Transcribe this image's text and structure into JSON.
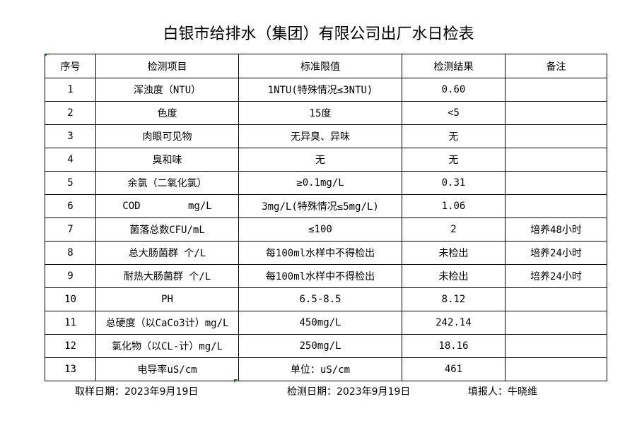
{
  "title": "白银市给排水（集团）有限公司出厂水日检表",
  "table": {
    "headers": [
      "序号",
      "检测项目",
      "标准限值",
      "检测结果",
      "备注"
    ],
    "rows": [
      [
        "1",
        "浑浊度（NTU）",
        "1NTU(特殊情况≤3NTU)",
        "0.60",
        ""
      ],
      [
        "2",
        "色度",
        "15度",
        "<5",
        ""
      ],
      [
        "3",
        "肉眼可见物",
        "无异臭、异味",
        "无",
        ""
      ],
      [
        "4",
        "臭和味",
        "无",
        "无",
        ""
      ],
      [
        "5",
        "余氯（二氧化氯）",
        "≥0.1mg/L",
        "0.31",
        ""
      ],
      [
        "6",
        "COD        mg/L",
        "3mg/L(特殊情况≤5mg/L)",
        "1.06",
        ""
      ],
      [
        "7",
        "菌落总数CFU/mL",
        "≤100",
        "2",
        "培养48小时"
      ],
      [
        "8",
        "总大肠菌群 个/L",
        "每100ml水样中不得检出",
        "未检出",
        "培养24小时"
      ],
      [
        "9",
        "耐热大肠菌群 个/L",
        "每100ml水样中不得检出",
        "未检出",
        "培养24小时"
      ],
      [
        "10",
        "PH",
        "6.5-8.5",
        "8.12",
        ""
      ],
      [
        "11",
        "总硬度（以CaCo3计）mg/L",
        "450mg/L",
        "242.14",
        ""
      ],
      [
        "12",
        "氯化物（以CL-计）mg/L",
        "250mg/L",
        "18.16",
        ""
      ],
      [
        "13",
        "电导率uS/cm",
        "单位：uS/cm",
        "461",
        ""
      ]
    ]
  },
  "footer": {
    "sampling_date": "取样日期：2023年9月19日",
    "test_date": "检测日期：2023年9月19日",
    "reporter": "填报人：牛晓维"
  }
}
